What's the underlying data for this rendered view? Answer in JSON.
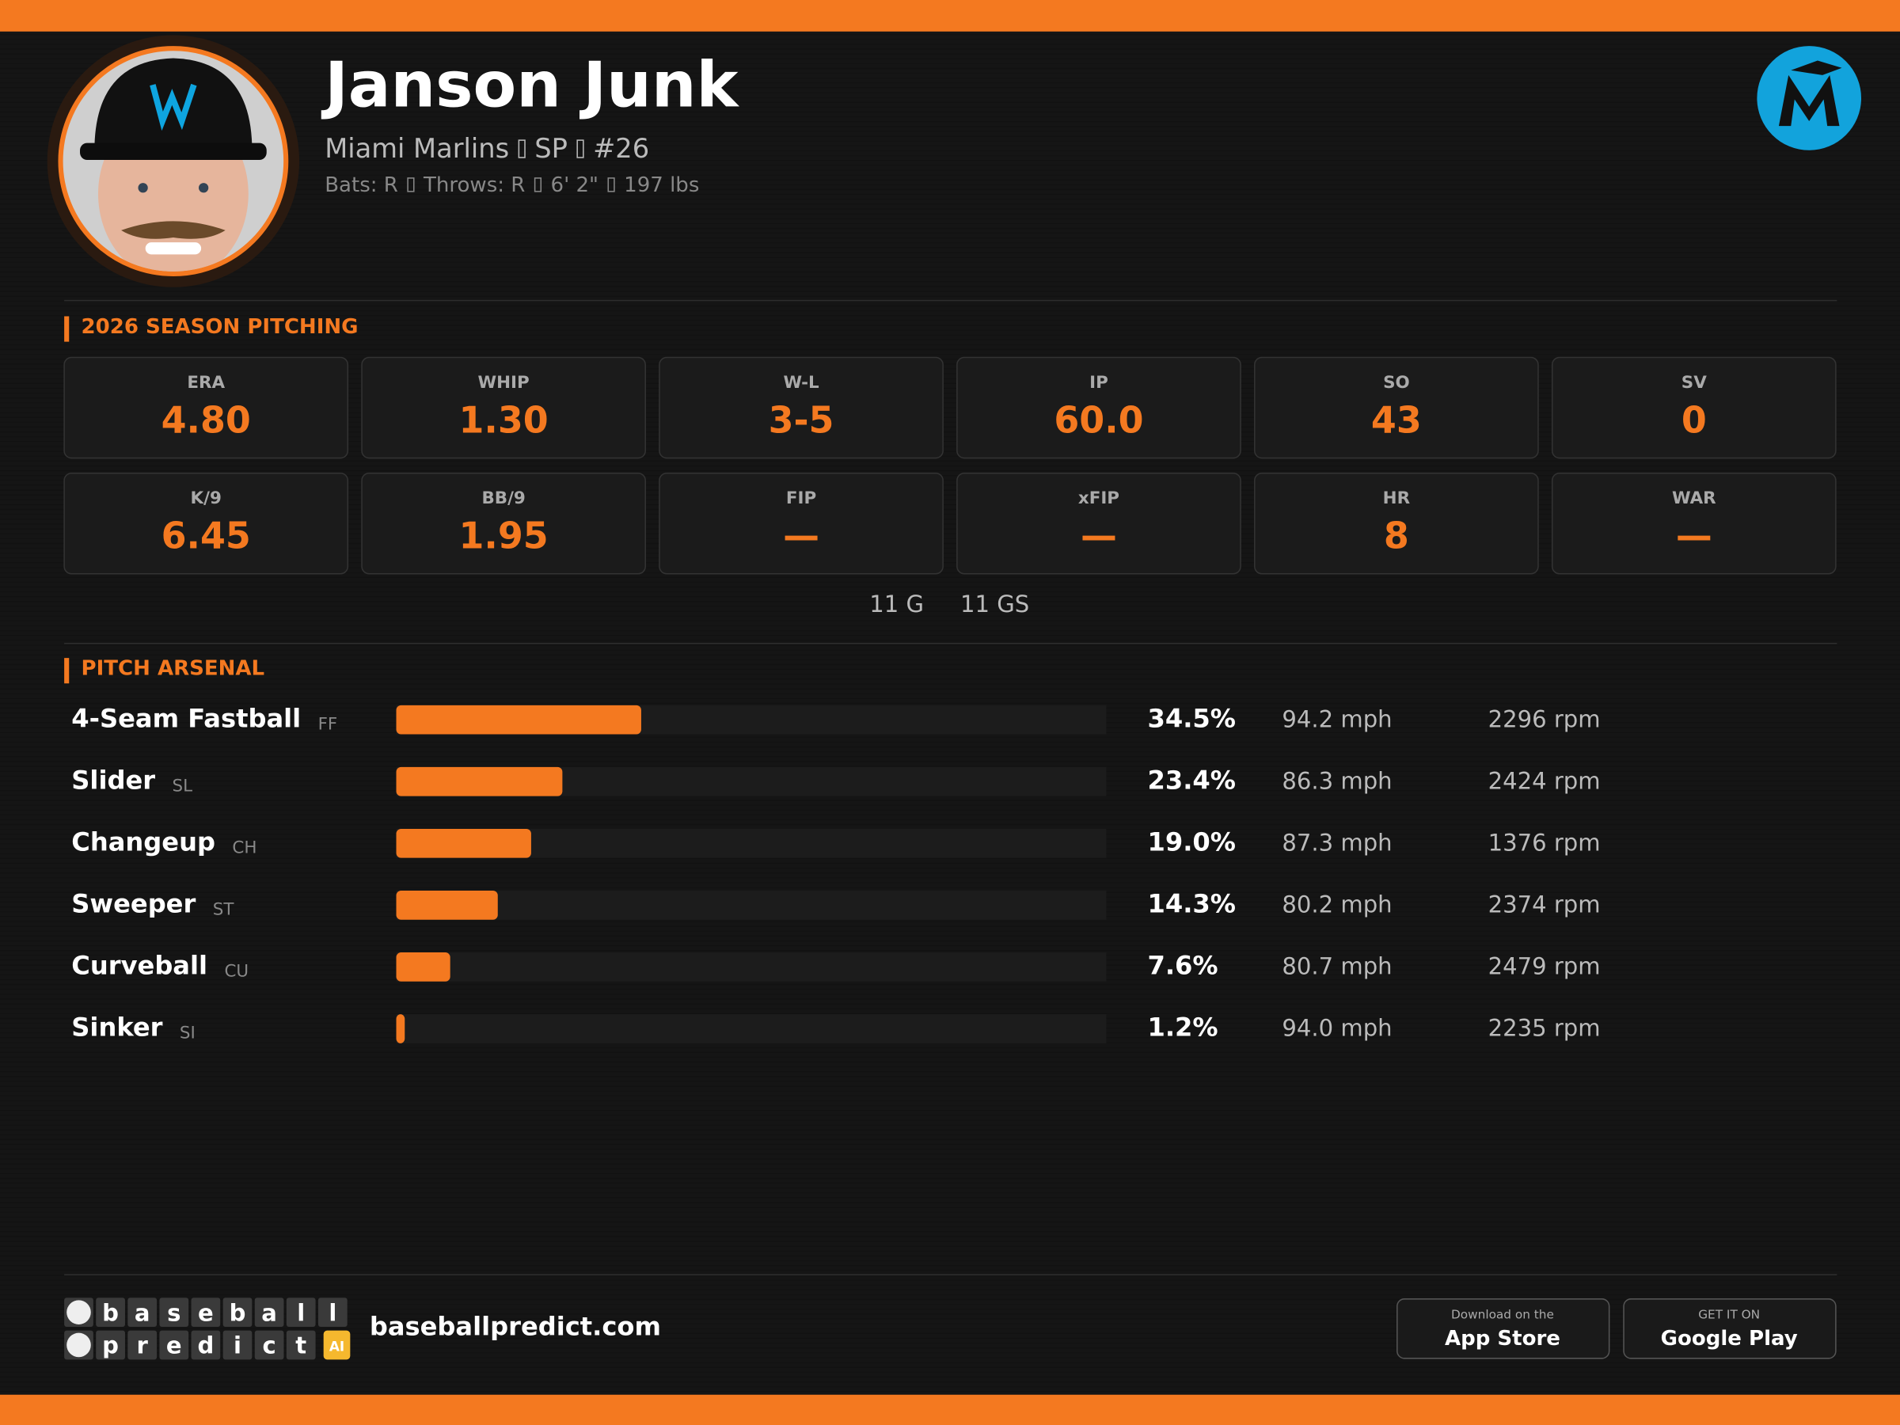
{
  "header": {
    "name": "Janson Junk",
    "team": "Miami Marlins",
    "position": "SP",
    "number": "#26",
    "bats": "Bats: R",
    "throws": "Throws: R",
    "height": "6' 2\"",
    "weight": "197 lbs"
  },
  "season": {
    "title": "2026 SEASON PITCHING",
    "stats": [
      {
        "label": "ERA",
        "value": "4.80"
      },
      {
        "label": "WHIP",
        "value": "1.30"
      },
      {
        "label": "W-L",
        "value": "3-5"
      },
      {
        "label": "IP",
        "value": "60.0"
      },
      {
        "label": "SO",
        "value": "43"
      },
      {
        "label": "SV",
        "value": "0"
      },
      {
        "label": "K/9",
        "value": "6.45"
      },
      {
        "label": "BB/9",
        "value": "1.95"
      },
      {
        "label": "FIP",
        "value": "—"
      },
      {
        "label": "xFIP",
        "value": "—"
      },
      {
        "label": "HR",
        "value": "8"
      },
      {
        "label": "WAR",
        "value": "—"
      }
    ],
    "games": "11 G",
    "games_started": "11 GS"
  },
  "arsenal": {
    "title": "PITCH ARSENAL",
    "xlim": [
      0,
      100
    ],
    "pitches": [
      {
        "name": "4-Seam Fastball",
        "code": "FF",
        "usage": 34.5,
        "usage_label": "34.5%",
        "velocity": "94.2 mph",
        "spin": "2296 rpm"
      },
      {
        "name": "Slider",
        "code": "SL",
        "usage": 23.4,
        "usage_label": "23.4%",
        "velocity": "86.3 mph",
        "spin": "2424 rpm"
      },
      {
        "name": "Changeup",
        "code": "CH",
        "usage": 19.0,
        "usage_label": "19.0%",
        "velocity": "87.3 mph",
        "spin": "1376 rpm"
      },
      {
        "name": "Sweeper",
        "code": "ST",
        "usage": 14.3,
        "usage_label": "14.3%",
        "velocity": "80.2 mph",
        "spin": "2374 rpm"
      },
      {
        "name": "Curveball",
        "code": "CU",
        "usage": 7.6,
        "usage_label": "7.6%",
        "velocity": "80.7 mph",
        "spin": "2479 rpm"
      },
      {
        "name": "Sinker",
        "code": "SI",
        "usage": 1.2,
        "usage_label": "1.2%",
        "velocity": "94.0 mph",
        "spin": "2235 rpm"
      }
    ]
  },
  "footer": {
    "logo_top": "baseball",
    "logo_bottom": "predict",
    "logo_badge": "AI",
    "site": "baseballpredict.com",
    "app_store_small": "Download on the",
    "app_store": "App Store",
    "google_small": "GET IT ON",
    "google": "Google Play"
  }
}
